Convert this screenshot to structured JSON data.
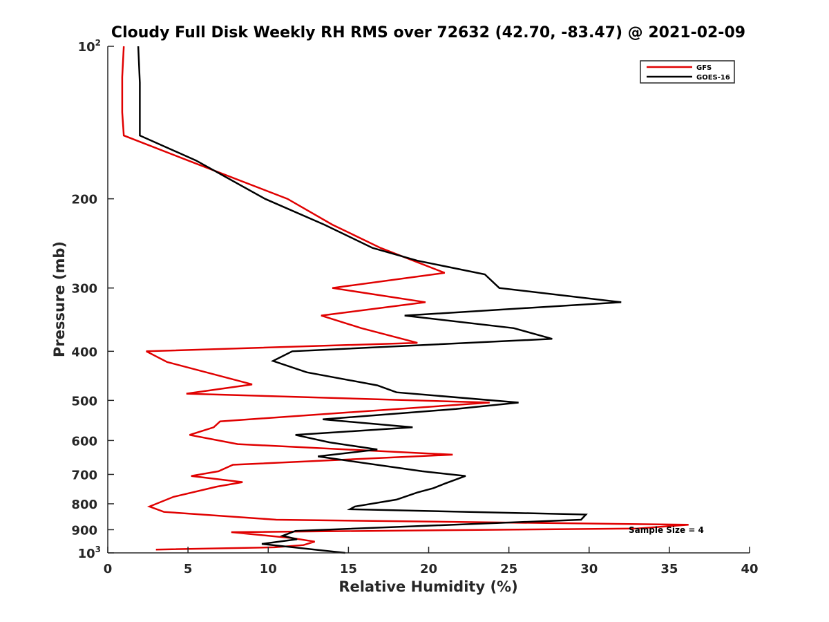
{
  "chart_data": {
    "type": "line",
    "title": "Cloudy Full Disk Weekly RH RMS over 72632 (42.70, -83.47) @ 2021-02-09",
    "xlabel": "Relative Humidity (%)",
    "ylabel": "Pressure (mb)",
    "xlim": [
      0,
      40
    ],
    "ylim": [
      100,
      1000
    ],
    "y_scale": "log",
    "y_reversed": true,
    "x_ticks": [
      "0",
      "5",
      "10",
      "15",
      "20",
      "25",
      "30",
      "35",
      "40"
    ],
    "y_ticks": [
      {
        "value": 100,
        "base": "10",
        "exp": "2"
      },
      {
        "value": 200,
        "label": "200"
      },
      {
        "value": 300,
        "label": "300"
      },
      {
        "value": 400,
        "label": "400"
      },
      {
        "value": 500,
        "label": "500"
      },
      {
        "value": 600,
        "label": "600"
      },
      {
        "value": 700,
        "label": "700"
      },
      {
        "value": 800,
        "label": "800"
      },
      {
        "value": 900,
        "label": "900"
      },
      {
        "value": 1000,
        "base": "10",
        "exp": "3"
      }
    ],
    "grid": false,
    "legend_position": "top-right",
    "annotation": "Sample Size = 4",
    "series": [
      {
        "name": "GFS",
        "color": "#e00000",
        "points": [
          [
            1.0,
            100
          ],
          [
            0.9,
            115
          ],
          [
            0.9,
            135
          ],
          [
            1.0,
            150
          ],
          [
            5.0,
            168
          ],
          [
            11.2,
            200
          ],
          [
            14.0,
            225
          ],
          [
            17.0,
            250
          ],
          [
            21.0,
            280
          ],
          [
            14.0,
            300
          ],
          [
            19.8,
            320
          ],
          [
            13.3,
            340
          ],
          [
            15.8,
            360
          ],
          [
            19.3,
            385
          ],
          [
            2.4,
            400
          ],
          [
            3.7,
            420
          ],
          [
            9.0,
            465
          ],
          [
            4.9,
            485
          ],
          [
            23.8,
            505
          ],
          [
            7.0,
            550
          ],
          [
            6.6,
            565
          ],
          [
            5.1,
            585
          ],
          [
            8.1,
            610
          ],
          [
            21.5,
            640
          ],
          [
            7.8,
            670
          ],
          [
            6.9,
            690
          ],
          [
            5.2,
            705
          ],
          [
            8.4,
            725
          ],
          [
            6.8,
            740
          ],
          [
            4.1,
            775
          ],
          [
            2.6,
            810
          ],
          [
            3.5,
            830
          ],
          [
            10.5,
            860
          ],
          [
            36.2,
            880
          ],
          [
            33.0,
            895
          ],
          [
            7.7,
            910
          ],
          [
            11.5,
            935
          ],
          [
            12.9,
            950
          ],
          [
            12.2,
            965
          ],
          [
            10.4,
            975
          ],
          [
            3.0,
            985
          ]
        ]
      },
      {
        "name": "GOES-16",
        "color": "#000000",
        "points": [
          [
            1.9,
            100
          ],
          [
            2.0,
            118
          ],
          [
            2.0,
            135
          ],
          [
            2.0,
            150
          ],
          [
            5.5,
            168
          ],
          [
            9.8,
            200
          ],
          [
            13.5,
            225
          ],
          [
            16.5,
            250
          ],
          [
            19.3,
            265
          ],
          [
            23.5,
            282
          ],
          [
            24.4,
            300
          ],
          [
            32.0,
            320
          ],
          [
            18.5,
            340
          ],
          [
            25.3,
            360
          ],
          [
            27.7,
            378
          ],
          [
            11.5,
            400
          ],
          [
            10.3,
            418
          ],
          [
            12.4,
            440
          ],
          [
            16.8,
            467
          ],
          [
            18.0,
            482
          ],
          [
            25.6,
            505
          ],
          [
            21.7,
            520
          ],
          [
            13.4,
            545
          ],
          [
            19.0,
            565
          ],
          [
            11.7,
            585
          ],
          [
            13.8,
            605
          ],
          [
            16.8,
            625
          ],
          [
            13.1,
            645
          ],
          [
            19.6,
            690
          ],
          [
            22.3,
            705
          ],
          [
            21.0,
            730
          ],
          [
            20.3,
            745
          ],
          [
            19.3,
            760
          ],
          [
            18.0,
            785
          ],
          [
            15.4,
            810
          ],
          [
            15.1,
            820
          ],
          [
            29.8,
            840
          ],
          [
            29.5,
            860
          ],
          [
            11.7,
            905
          ],
          [
            10.9,
            925
          ],
          [
            11.8,
            940
          ],
          [
            9.6,
            960
          ],
          [
            14.8,
            1000
          ]
        ]
      }
    ]
  }
}
